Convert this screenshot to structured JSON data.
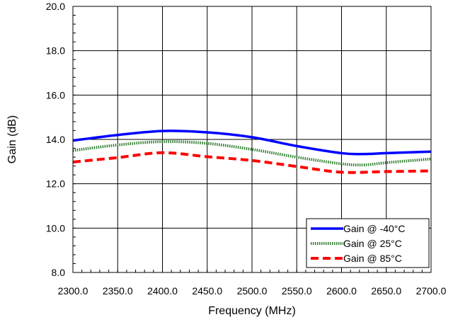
{
  "chart_data": {
    "type": "line",
    "title": "",
    "xlabel": "Frequency (MHz)",
    "ylabel": "Gain (dB)",
    "xlim": [
      2300,
      2700
    ],
    "ylim": [
      8,
      20
    ],
    "x_ticks": [
      2300,
      2350,
      2400,
      2450,
      2500,
      2550,
      2600,
      2650,
      2700
    ],
    "x_tick_labels": [
      "2300.0",
      "2350.0",
      "2400.0",
      "2450.0",
      "2500.0",
      "2550.0",
      "2600.0",
      "2650.0",
      "2700.0"
    ],
    "y_ticks": [
      8,
      10,
      12,
      14,
      16,
      18,
      20
    ],
    "y_tick_labels": [
      "8.0",
      "10.0",
      "12.0",
      "14.0",
      "16.0",
      "18.0",
      "20.0"
    ],
    "grid": true,
    "legend_position": "bottom-right",
    "series": [
      {
        "name": "Gain @ -40°C",
        "color": "#0000ff",
        "style": "solid",
        "x": [
          2300,
          2350,
          2400,
          2450,
          2500,
          2550,
          2600,
          2625,
          2650,
          2700
        ],
        "y": [
          13.95,
          14.2,
          14.38,
          14.32,
          14.1,
          13.7,
          13.38,
          13.34,
          13.38,
          13.45
        ]
      },
      {
        "name": "Gain @ 25°C",
        "color": "#2e7d2e",
        "style": "dotted",
        "x": [
          2300,
          2350,
          2400,
          2450,
          2500,
          2550,
          2600,
          2625,
          2650,
          2700
        ],
        "y": [
          13.5,
          13.75,
          13.9,
          13.82,
          13.55,
          13.2,
          12.9,
          12.85,
          12.95,
          13.12
        ]
      },
      {
        "name": "Gain @ 85°C",
        "color": "#ff0000",
        "style": "dashed",
        "x": [
          2300,
          2350,
          2400,
          2450,
          2500,
          2550,
          2600,
          2650,
          2700
        ],
        "y": [
          12.98,
          13.18,
          13.4,
          13.22,
          13.05,
          12.78,
          12.52,
          12.55,
          12.58
        ]
      }
    ]
  }
}
